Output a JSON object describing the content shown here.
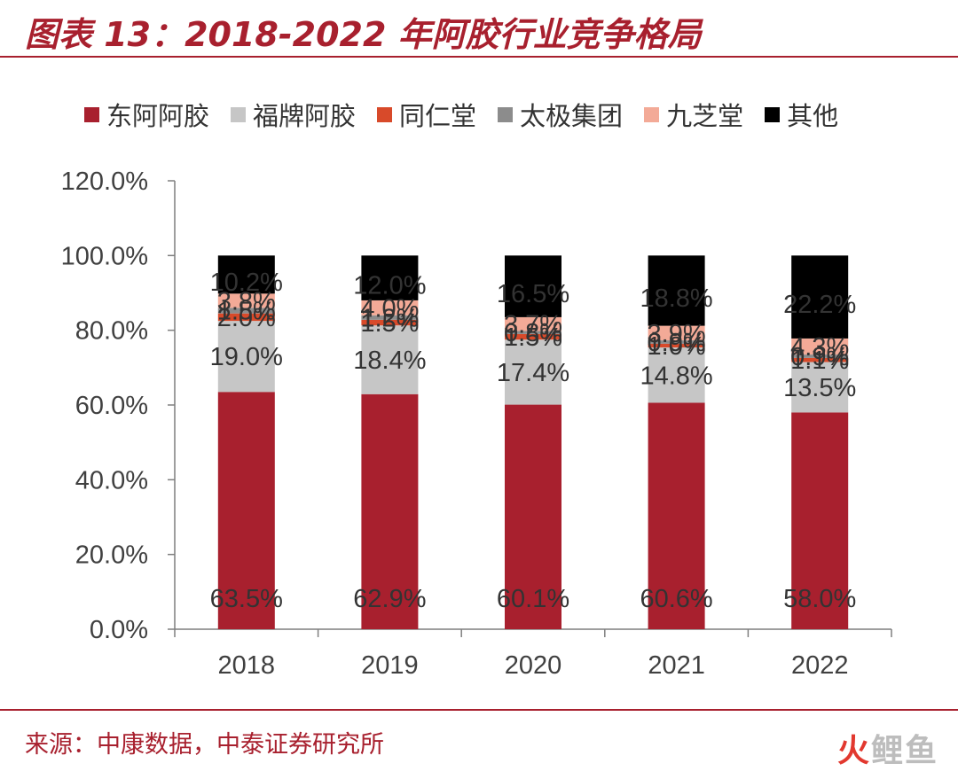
{
  "header": {
    "title": "图表 13：2018-2022 年阿胶行业竞争格局"
  },
  "footer": {
    "source": "来源：中康数据，中泰证券研究所",
    "watermark_a": "火",
    "watermark_b": "鲤鱼"
  },
  "chart_data": {
    "type": "bar",
    "stacked": true,
    "title": "图表 13：2018-2022 年阿胶行业竞争格局",
    "xlabel": "",
    "ylabel": "",
    "categories": [
      "2018",
      "2019",
      "2020",
      "2021",
      "2022"
    ],
    "ylim": [
      0,
      120
    ],
    "yticks": [
      "0.0%",
      "20.0%",
      "40.0%",
      "60.0%",
      "80.0%",
      "100.0%",
      "120.0%"
    ],
    "legend_position": "top",
    "series": [
      {
        "name": "东阿阿胶",
        "color": "#a8202e",
        "values": [
          63.5,
          62.9,
          60.1,
          60.6,
          58.0
        ],
        "labels": [
          "63.5%",
          "62.9%",
          "60.1%",
          "60.6%",
          "58.0%"
        ]
      },
      {
        "name": "福牌阿胶",
        "color": "#c6c6c6",
        "values": [
          19.0,
          18.4,
          17.4,
          14.8,
          13.5
        ],
        "labels": [
          "19.0%",
          "18.4%",
          "17.4%",
          "14.8%",
          "13.5%"
        ]
      },
      {
        "name": "同仁堂",
        "color": "#d84a2a",
        "values": [
          2.0,
          1.5,
          1.5,
          1.0,
          1.1
        ],
        "labels": [
          "2.0%",
          "1.5%",
          "1.5%",
          "1.0%",
          "1.1%"
        ]
      },
      {
        "name": "太极集团",
        "color": "#8c8c8c",
        "values": [
          1.5,
          1.2,
          0.8,
          0.9,
          0.9
        ],
        "labels": [
          "1.5%",
          "1.2%",
          "0.8%",
          "0.9%",
          "0.9%"
        ]
      },
      {
        "name": "九芝堂",
        "color": "#f3aa97",
        "values": [
          3.8,
          4.0,
          3.7,
          3.9,
          4.3
        ],
        "labels": [
          "3.8%",
          "4.0%",
          "3.7%",
          "3.9%",
          "4.3%"
        ]
      },
      {
        "name": "其他",
        "color": "#000000",
        "values": [
          10.2,
          12.0,
          16.5,
          18.8,
          22.2
        ],
        "labels": [
          "10.2%",
          "12.0%",
          "16.5%",
          "18.8%",
          "22.2%"
        ]
      }
    ]
  }
}
